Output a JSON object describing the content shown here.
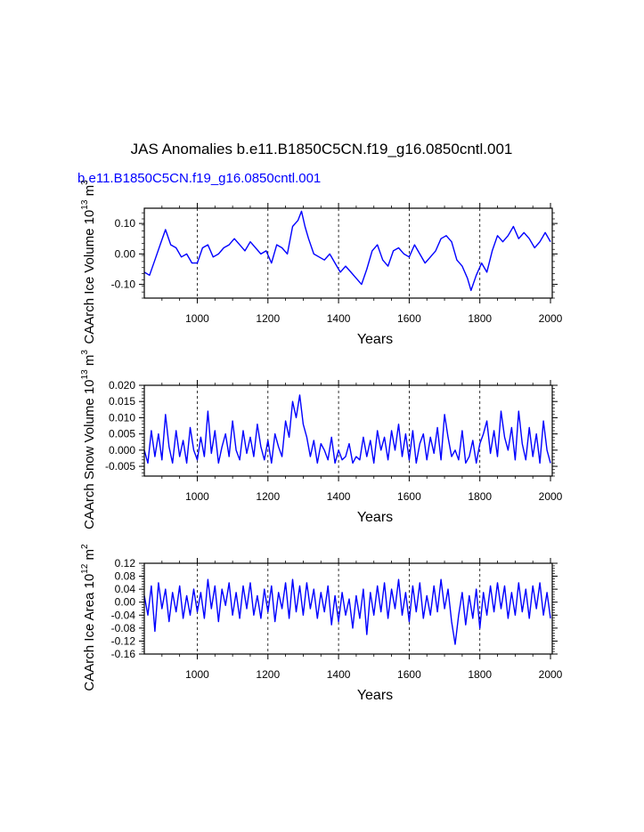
{
  "figure": {
    "title": "JAS Anomalies b.e11.B1850C5CN.f19_g16.0850cntl.001",
    "case_label": "b.e11.B1850C5CN.f19_g16.0850cntl.001",
    "case_label_color": "#0000ff",
    "line_color": "#0000ff"
  },
  "chart_data": [
    {
      "type": "line",
      "title": "",
      "xlabel": "Years",
      "ylabel": "CAArch Ice Volume",
      "ylabel_units": "10^13 m^3",
      "ylabel_pow_main": "10",
      "ylabel_pow_exp": "13",
      "ylabel_unit_main": "m",
      "ylabel_unit_exp": "3",
      "corner_label": "10^13",
      "xlim": [
        850,
        2005
      ],
      "ylim": [
        -0.145,
        0.15
      ],
      "xticks": [
        1000,
        1200,
        1400,
        1600,
        1800,
        2000
      ],
      "xtick_labels": [
        "1000",
        "1200",
        "1400",
        "1600",
        "1800",
        "2000"
      ],
      "yticks": [
        -0.1,
        0.0,
        0.1
      ],
      "ytick_labels": [
        "-0.10",
        "0.00",
        "0.10"
      ],
      "grid": "vertical dashed at 1000-1800",
      "series": [
        {
          "name": "CAArch Ice Volume",
          "x": [
            850,
            865,
            880,
            895,
            910,
            925,
            940,
            955,
            970,
            985,
            1000,
            1015,
            1030,
            1045,
            1060,
            1075,
            1090,
            1105,
            1120,
            1135,
            1150,
            1165,
            1180,
            1195,
            1210,
            1225,
            1240,
            1255,
            1270,
            1285,
            1295,
            1305,
            1315,
            1330,
            1345,
            1360,
            1375,
            1390,
            1405,
            1420,
            1435,
            1450,
            1465,
            1480,
            1495,
            1510,
            1525,
            1540,
            1555,
            1570,
            1585,
            1600,
            1615,
            1630,
            1645,
            1660,
            1675,
            1690,
            1705,
            1720,
            1735,
            1750,
            1765,
            1775,
            1790,
            1805,
            1820,
            1835,
            1850,
            1865,
            1880,
            1895,
            1910,
            1925,
            1940,
            1955,
            1970,
            1985,
            2000
          ],
          "values": [
            -0.06,
            -0.07,
            -0.02,
            0.03,
            0.08,
            0.03,
            0.02,
            -0.01,
            0.0,
            -0.03,
            -0.03,
            0.02,
            0.03,
            -0.01,
            0.0,
            0.02,
            0.03,
            0.05,
            0.03,
            0.01,
            0.04,
            0.02,
            0.0,
            0.01,
            -0.03,
            0.03,
            0.02,
            0.0,
            0.09,
            0.11,
            0.14,
            0.09,
            0.05,
            0.0,
            -0.01,
            -0.02,
            0.0,
            -0.03,
            -0.06,
            -0.04,
            -0.06,
            -0.08,
            -0.1,
            -0.05,
            0.01,
            0.03,
            -0.02,
            -0.04,
            0.01,
            0.02,
            0.0,
            -0.01,
            0.03,
            0.0,
            -0.03,
            -0.01,
            0.01,
            0.05,
            0.06,
            0.04,
            -0.02,
            -0.04,
            -0.08,
            -0.12,
            -0.07,
            -0.03,
            -0.06,
            0.01,
            0.06,
            0.04,
            0.06,
            0.09,
            0.05,
            0.07,
            0.05,
            0.02,
            0.04,
            0.07,
            0.04
          ]
        }
      ]
    },
    {
      "type": "line",
      "title": "",
      "xlabel": "Years",
      "ylabel": "CAArch Snow Volume",
      "ylabel_units": "10^13 m^3",
      "ylabel_pow_main": "10",
      "ylabel_pow_exp": "13",
      "ylabel_unit_main": "m",
      "ylabel_unit_exp": "3",
      "xlim": [
        850,
        2005
      ],
      "ylim": [
        -0.008,
        0.02
      ],
      "xticks": [
        1000,
        1200,
        1400,
        1600,
        1800,
        2000
      ],
      "xtick_labels": [
        "1000",
        "1200",
        "1400",
        "1600",
        "1800",
        "2000"
      ],
      "yticks": [
        -0.005,
        0.0,
        0.005,
        0.01,
        0.015,
        0.02
      ],
      "ytick_labels": [
        "-0.005",
        "0.000",
        "0.005",
        "0.010",
        "0.015",
        "0.020"
      ],
      "grid": "vertical dashed at 1000-1800",
      "series": [
        {
          "name": "CAArch Snow Volume",
          "x": [
            850,
            860,
            870,
            880,
            890,
            900,
            910,
            920,
            930,
            940,
            950,
            960,
            970,
            980,
            990,
            1000,
            1010,
            1020,
            1030,
            1040,
            1050,
            1060,
            1070,
            1080,
            1090,
            1100,
            1110,
            1120,
            1130,
            1140,
            1150,
            1160,
            1170,
            1180,
            1190,
            1200,
            1210,
            1220,
            1230,
            1240,
            1250,
            1260,
            1270,
            1280,
            1290,
            1300,
            1310,
            1320,
            1330,
            1340,
            1350,
            1360,
            1370,
            1380,
            1390,
            1400,
            1410,
            1420,
            1430,
            1440,
            1450,
            1460,
            1470,
            1480,
            1490,
            1500,
            1510,
            1520,
            1530,
            1540,
            1550,
            1560,
            1570,
            1580,
            1590,
            1600,
            1610,
            1620,
            1630,
            1640,
            1650,
            1660,
            1670,
            1680,
            1690,
            1700,
            1710,
            1720,
            1730,
            1740,
            1750,
            1760,
            1770,
            1780,
            1790,
            1800,
            1810,
            1820,
            1830,
            1840,
            1850,
            1860,
            1870,
            1880,
            1890,
            1900,
            1910,
            1920,
            1930,
            1940,
            1950,
            1960,
            1970,
            1980,
            1990,
            2000
          ],
          "values": [
            0.0,
            -0.004,
            0.006,
            -0.002,
            0.005,
            -0.003,
            0.011,
            0.001,
            -0.004,
            0.006,
            -0.002,
            0.003,
            -0.004,
            0.007,
            0.0,
            -0.003,
            0.004,
            -0.002,
            0.012,
            -0.001,
            0.006,
            -0.004,
            0.001,
            0.005,
            -0.002,
            0.009,
            0.0,
            -0.003,
            0.006,
            -0.001,
            0.004,
            -0.002,
            0.008,
            0.001,
            -0.003,
            0.003,
            -0.004,
            0.005,
            0.001,
            -0.002,
            0.009,
            0.004,
            0.015,
            0.01,
            0.017,
            0.008,
            0.004,
            -0.002,
            0.003,
            -0.004,
            0.002,
            0.0,
            -0.003,
            0.004,
            -0.004,
            0.0,
            -0.003,
            -0.002,
            0.002,
            -0.004,
            -0.002,
            -0.003,
            0.004,
            -0.002,
            0.003,
            -0.004,
            0.006,
            0.0,
            0.004,
            -0.003,
            0.006,
            0.0,
            0.008,
            -0.002,
            0.005,
            -0.003,
            0.006,
            -0.004,
            0.002,
            0.005,
            -0.003,
            0.004,
            -0.001,
            0.007,
            -0.003,
            0.011,
            0.004,
            -0.002,
            0.0,
            -0.003,
            0.006,
            -0.004,
            -0.002,
            0.003,
            -0.004,
            0.002,
            0.005,
            0.009,
            -0.001,
            0.006,
            -0.002,
            0.012,
            0.004,
            0.0,
            0.007,
            -0.003,
            0.012,
            0.002,
            -0.003,
            0.007,
            -0.002,
            0.005,
            -0.004,
            0.009,
            0.0,
            -0.004
          ]
        }
      ]
    },
    {
      "type": "line",
      "title": "",
      "xlabel": "Years",
      "ylabel": "CAArch Ice Area",
      "ylabel_units": "10^12 m^2",
      "ylabel_pow_main": "10",
      "ylabel_pow_exp": "12",
      "ylabel_unit_main": "m",
      "ylabel_unit_exp": "2",
      "xlim": [
        850,
        2005
      ],
      "ylim": [
        -0.16,
        0.12
      ],
      "xticks": [
        1000,
        1200,
        1400,
        1600,
        1800,
        2000
      ],
      "xtick_labels": [
        "1000",
        "1200",
        "1400",
        "1600",
        "1800",
        "2000"
      ],
      "yticks": [
        -0.16,
        -0.12,
        -0.08,
        -0.04,
        0.0,
        0.04,
        0.08,
        0.12
      ],
      "ytick_labels": [
        "-0.16",
        "-0.12",
        "-0.08",
        "-0.04",
        "0.00",
        "0.04",
        "0.08",
        "0.12"
      ],
      "grid": "vertical dashed at 1000-1800",
      "series": [
        {
          "name": "CAArch Ice Area",
          "x": [
            850,
            860,
            870,
            880,
            890,
            900,
            910,
            920,
            930,
            940,
            950,
            960,
            970,
            980,
            990,
            1000,
            1010,
            1020,
            1030,
            1040,
            1050,
            1060,
            1070,
            1080,
            1090,
            1100,
            1110,
            1120,
            1130,
            1140,
            1150,
            1160,
            1170,
            1180,
            1190,
            1200,
            1210,
            1220,
            1230,
            1240,
            1250,
            1260,
            1270,
            1280,
            1290,
            1300,
            1310,
            1320,
            1330,
            1340,
            1350,
            1360,
            1370,
            1380,
            1390,
            1400,
            1410,
            1420,
            1430,
            1440,
            1450,
            1460,
            1470,
            1480,
            1490,
            1500,
            1510,
            1520,
            1530,
            1540,
            1550,
            1560,
            1570,
            1580,
            1590,
            1600,
            1610,
            1620,
            1630,
            1640,
            1650,
            1660,
            1670,
            1680,
            1690,
            1700,
            1710,
            1720,
            1730,
            1740,
            1750,
            1760,
            1770,
            1780,
            1790,
            1800,
            1810,
            1820,
            1830,
            1840,
            1850,
            1860,
            1870,
            1880,
            1890,
            1900,
            1910,
            1920,
            1930,
            1940,
            1950,
            1960,
            1970,
            1980,
            1990,
            2000
          ],
          "values": [
            0.02,
            -0.04,
            0.05,
            -0.09,
            0.06,
            -0.02,
            0.04,
            -0.06,
            0.03,
            -0.03,
            0.05,
            -0.05,
            0.02,
            -0.04,
            0.04,
            -0.03,
            0.03,
            -0.05,
            0.07,
            -0.02,
            0.05,
            -0.06,
            0.04,
            -0.01,
            0.06,
            -0.04,
            0.03,
            -0.05,
            0.05,
            -0.02,
            0.06,
            -0.04,
            0.02,
            -0.05,
            0.04,
            -0.03,
            0.05,
            -0.06,
            0.03,
            -0.02,
            0.06,
            -0.05,
            0.07,
            -0.03,
            0.05,
            -0.04,
            0.06,
            -0.02,
            0.04,
            -0.05,
            0.03,
            -0.03,
            0.05,
            -0.07,
            0.02,
            -0.06,
            0.03,
            -0.04,
            0.01,
            -0.08,
            0.02,
            -0.05,
            0.04,
            -0.1,
            0.03,
            -0.04,
            0.05,
            -0.03,
            0.06,
            -0.05,
            0.04,
            -0.02,
            0.07,
            -0.04,
            0.03,
            -0.06,
            0.05,
            -0.03,
            0.06,
            -0.05,
            0.02,
            -0.04,
            0.05,
            -0.03,
            0.07,
            -0.02,
            0.04,
            -0.06,
            -0.13,
            -0.04,
            0.03,
            -0.07,
            0.02,
            -0.05,
            0.04,
            -0.08,
            0.03,
            -0.04,
            0.05,
            -0.03,
            0.06,
            -0.02,
            0.05,
            -0.05,
            0.03,
            -0.04,
            0.06,
            -0.03,
            0.04,
            -0.05,
            0.05,
            -0.02,
            0.06,
            -0.04,
            0.03,
            -0.05
          ]
        }
      ]
    }
  ]
}
